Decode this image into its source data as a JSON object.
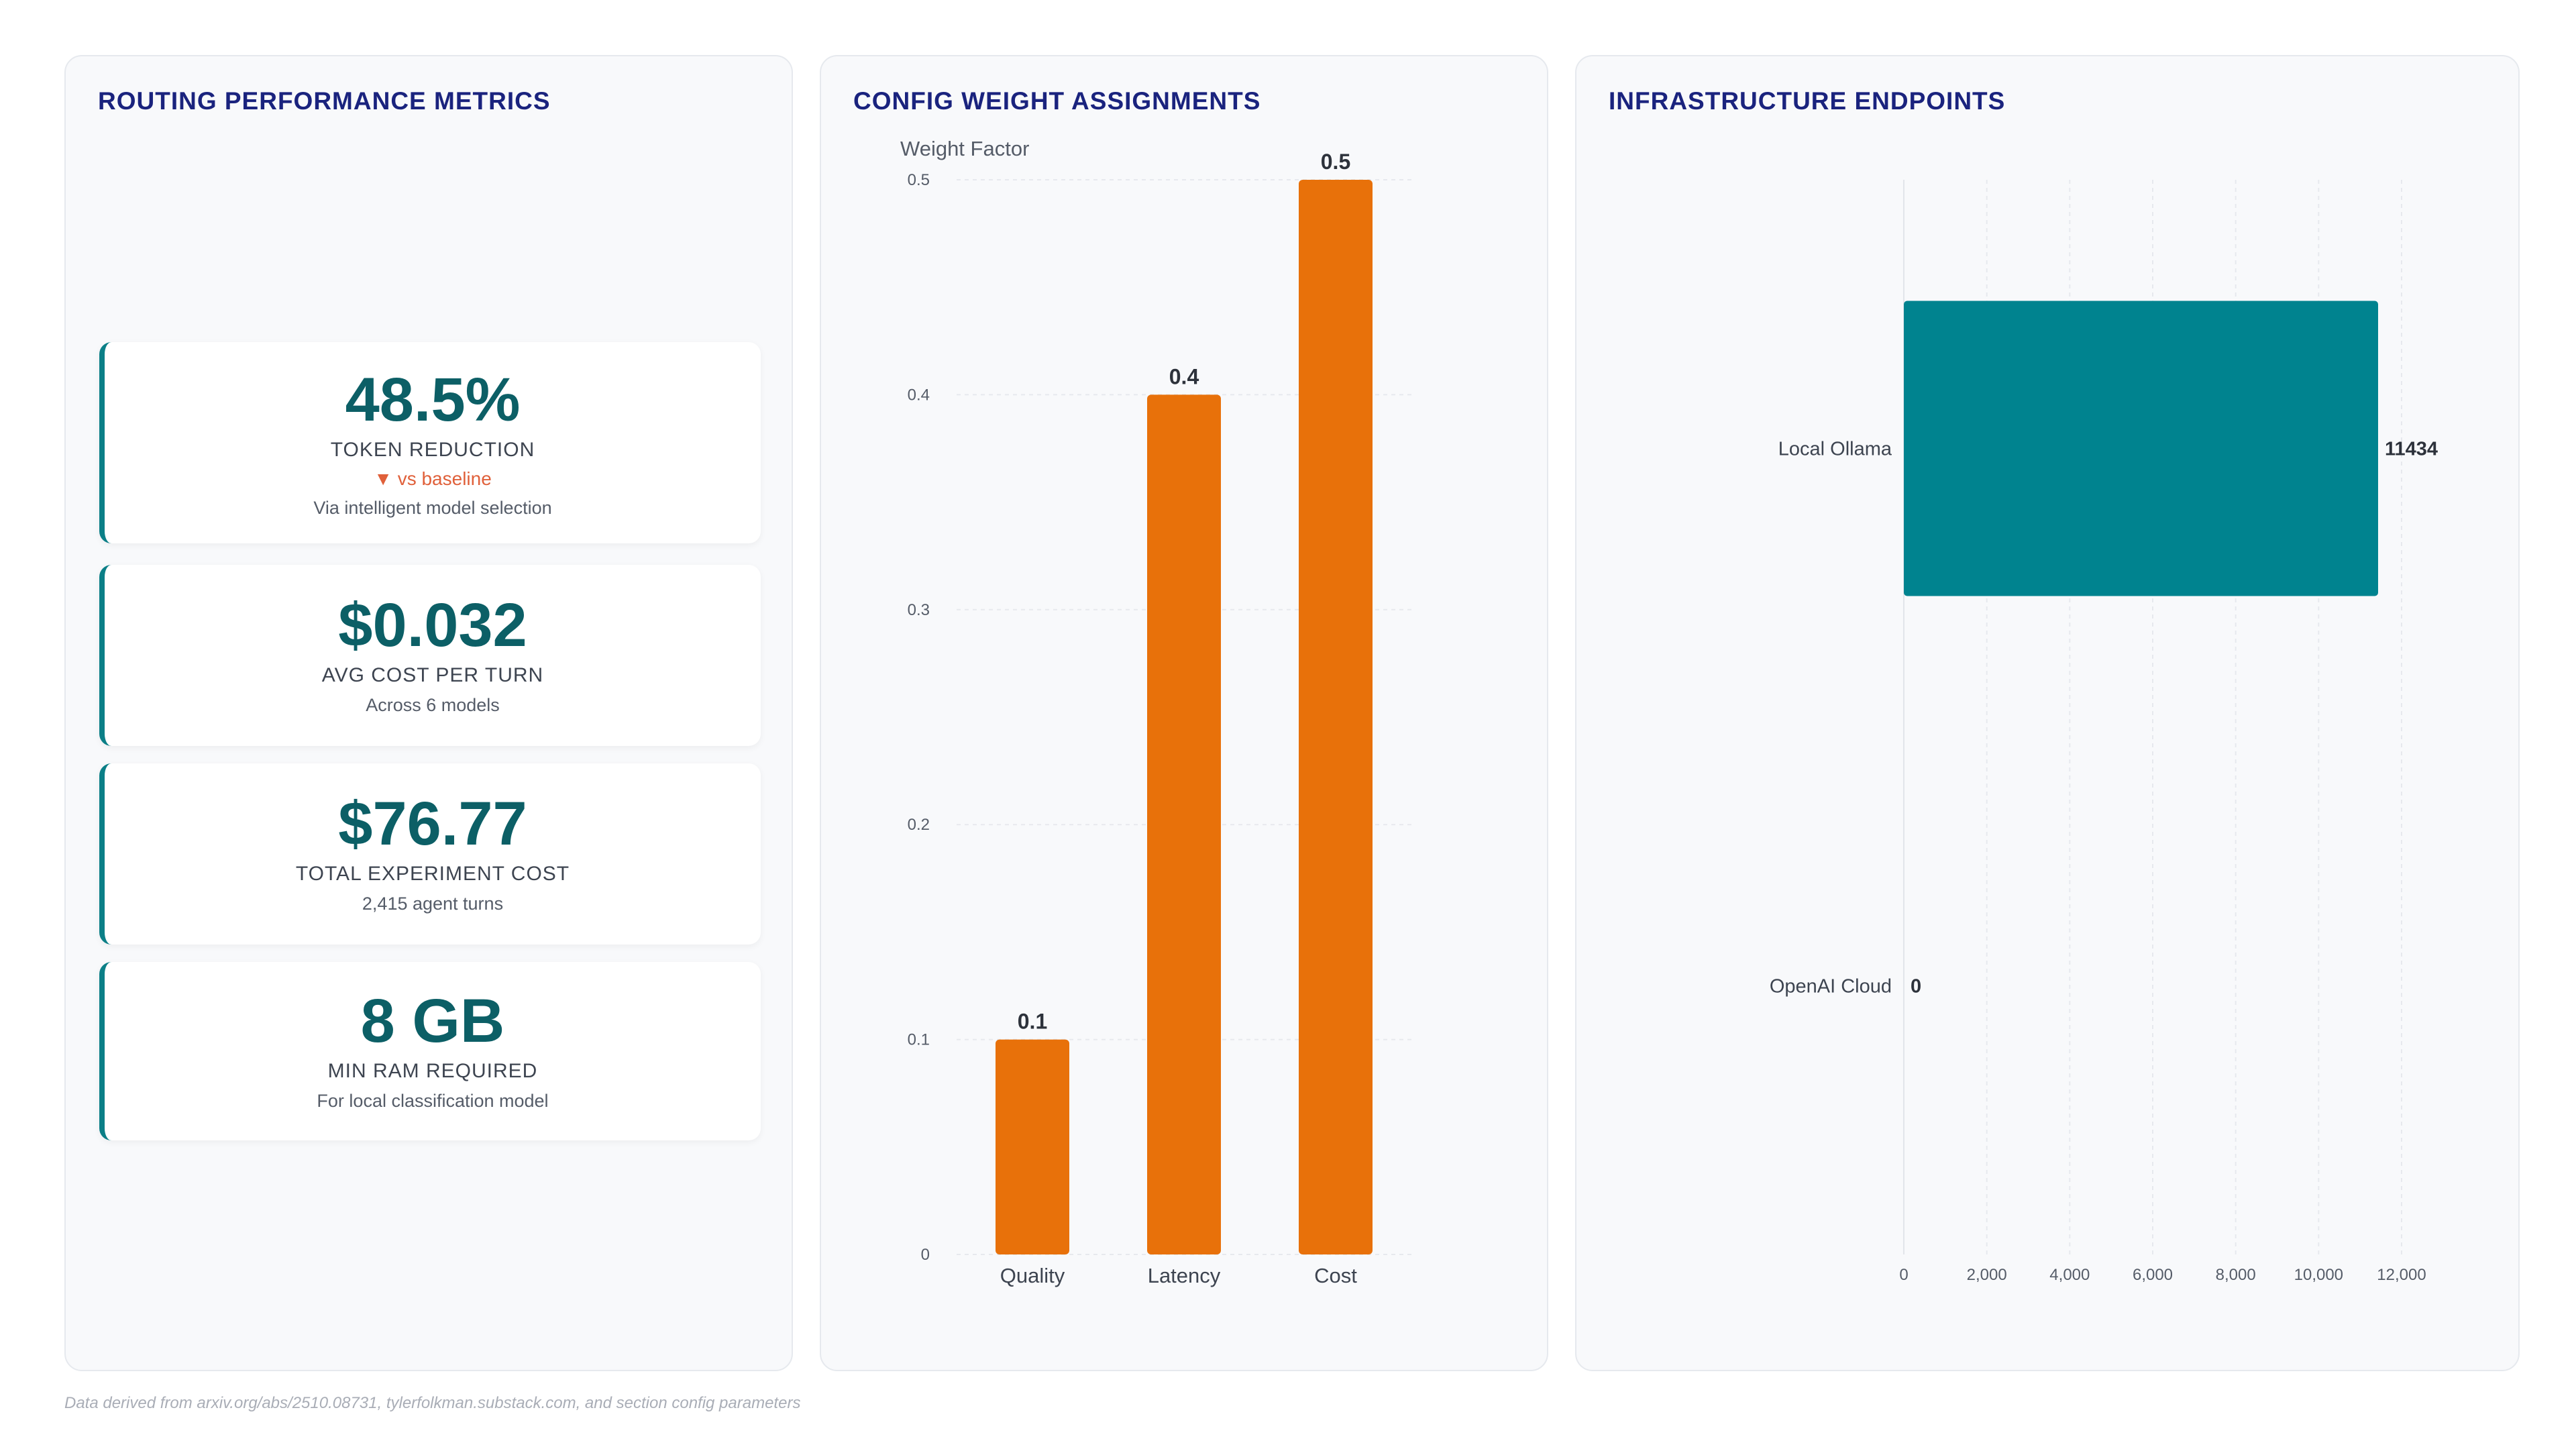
{
  "metrics": {
    "title": "ROUTING PERFORMANCE METRICS",
    "cards": [
      {
        "value": "48.5%",
        "label": "TOKEN REDUCTION",
        "delta": "▼ vs baseline",
        "note": "Via intelligent model selection"
      },
      {
        "value": "$0.032",
        "label": "AVG COST PER TURN",
        "note": "Across 6 models"
      },
      {
        "value": "$76.77",
        "label": "TOTAL EXPERIMENT COST",
        "note": "2,415 agent turns"
      },
      {
        "value": "8 GB",
        "label": "MIN RAM REQUIRED",
        "note": "For local classification model"
      }
    ],
    "accent": "#0b7f87",
    "delta_color": "#e0603a"
  },
  "weights": {
    "title": "CONFIG WEIGHT ASSIGNMENTS"
  },
  "endpoints": {
    "title": "INFRASTRUCTURE ENDPOINTS"
  },
  "chart_data": [
    {
      "type": "bar",
      "title": "CONFIG WEIGHT ASSIGNMENTS",
      "categories": [
        "Quality",
        "Latency",
        "Cost"
      ],
      "values": [
        0.1,
        0.4,
        0.5
      ],
      "ylabel": "Weight Factor",
      "xlabel": "",
      "ylim": [
        0,
        0.5
      ],
      "yticks": [
        "0",
        "0.1",
        "0.2",
        "0.3",
        "0.4",
        "0.5"
      ],
      "data_labels": [
        "0.1",
        "0.4",
        "0.5"
      ],
      "color": "#e8710a",
      "grid": true
    },
    {
      "type": "bar",
      "orientation": "horizontal",
      "title": "INFRASTRUCTURE ENDPOINTS",
      "categories": [
        "Local Ollama",
        "OpenAI Cloud"
      ],
      "values": [
        11434,
        0
      ],
      "xlim": [
        0,
        12000
      ],
      "xticks": [
        "0",
        "2,000",
        "4,000",
        "6,000",
        "8,000",
        "10,000",
        "12,000"
      ],
      "data_labels": [
        "11434",
        "0"
      ],
      "color": "#00838f",
      "grid": true
    }
  ],
  "footer": {
    "source": "Data derived from arxiv.org/abs/2510.08731, tylerfolkman.substack.com, and section config parameters"
  }
}
